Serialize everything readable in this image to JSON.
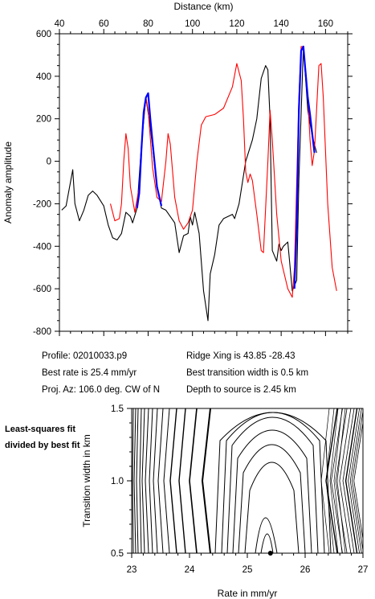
{
  "info": {
    "profile": "Profile: 02010033.p9",
    "best_rate": "Best rate is 25.4 mm/yr",
    "proj_az": "Proj. Az: 106.0 deg. CW of N",
    "ridge_xing": "Ridge Xing is 43.85 -28.43",
    "best_width": "Best transition width is 0.5 km",
    "depth": "Depth to source is   2.45 km"
  },
  "note": "Least-squares fit divided by best fit",
  "chart_data": [
    {
      "type": "line",
      "xlabel": "Distance (km)",
      "ylabel": "Anomaly amplitude",
      "xlim": [
        40,
        170
      ],
      "ylim": [
        -800,
        600
      ],
      "xticks": [
        40,
        60,
        80,
        100,
        120,
        140,
        160
      ],
      "yticks": [
        600,
        400,
        200,
        0,
        -200,
        -400,
        -600,
        -800
      ],
      "series": [
        {
          "color": "#000000",
          "points": [
            [
              41,
              -230
            ],
            [
              43,
              -210
            ],
            [
              46,
              -40
            ],
            [
              47,
              -200
            ],
            [
              49,
              -280
            ],
            [
              51,
              -230
            ],
            [
              53,
              -160
            ],
            [
              55,
              -140
            ],
            [
              57,
              -160
            ],
            [
              60,
              -210
            ],
            [
              62,
              -300
            ],
            [
              64,
              -360
            ],
            [
              66,
              -370
            ],
            [
              68,
              -340
            ],
            [
              70,
              -240
            ],
            [
              72,
              -260
            ],
            [
              73,
              -290
            ],
            [
              75,
              -220
            ],
            [
              77,
              80
            ],
            [
              79,
              300
            ],
            [
              81,
              160
            ],
            [
              84,
              -120
            ],
            [
              86,
              -220
            ],
            [
              88,
              -230
            ],
            [
              90,
              -260
            ],
            [
              92,
              -290
            ],
            [
              94,
              -430
            ],
            [
              96,
              -350
            ],
            [
              98,
              -340
            ],
            [
              99,
              -260
            ],
            [
              100,
              -300
            ],
            [
              101,
              -240
            ],
            [
              103,
              -340
            ],
            [
              105,
              -610
            ],
            [
              107,
              -750
            ],
            [
              108,
              -530
            ],
            [
              110,
              -440
            ],
            [
              112,
              -300
            ],
            [
              114,
              -270
            ],
            [
              116,
              -260
            ],
            [
              118,
              -250
            ],
            [
              119,
              -270
            ],
            [
              121,
              -200
            ],
            [
              124,
              0
            ],
            [
              127,
              100
            ],
            [
              129,
              200
            ],
            [
              131,
              390
            ],
            [
              133,
              450
            ],
            [
              134,
              430
            ],
            [
              135,
              200
            ],
            [
              136,
              -420
            ],
            [
              138,
              -470
            ],
            [
              139,
              -390
            ],
            [
              140,
              -420
            ],
            [
              141,
              -400
            ],
            [
              143,
              -380
            ],
            [
              145,
              -610
            ],
            [
              147,
              -560
            ],
            [
              148,
              -90
            ],
            [
              150,
              540
            ],
            [
              152,
              240
            ],
            [
              154,
              120
            ],
            [
              156,
              40
            ]
          ]
        },
        {
          "color": "#ff0000",
          "points": [
            [
              63,
              -200
            ],
            [
              65,
              -280
            ],
            [
              67,
              -270
            ],
            [
              68,
              -200
            ],
            [
              69,
              0
            ],
            [
              70,
              130
            ],
            [
              71,
              60
            ],
            [
              72,
              -120
            ],
            [
              74,
              -240
            ],
            [
              76,
              -120
            ],
            [
              78,
              200
            ],
            [
              79,
              300
            ],
            [
              80,
              240
            ],
            [
              82,
              -30
            ],
            [
              84,
              -170
            ],
            [
              86,
              -190
            ],
            [
              88,
              0
            ],
            [
              89,
              130
            ],
            [
              90,
              80
            ],
            [
              92,
              -170
            ],
            [
              94,
              -280
            ],
            [
              96,
              -320
            ],
            [
              98,
              -290
            ],
            [
              100,
              -230
            ],
            [
              102,
              0
            ],
            [
              104,
              170
            ],
            [
              106,
              210
            ],
            [
              110,
              220
            ],
            [
              114,
              250
            ],
            [
              118,
              350
            ],
            [
              120,
              460
            ],
            [
              122,
              380
            ],
            [
              123,
              200
            ],
            [
              124,
              -50
            ],
            [
              125,
              -100
            ],
            [
              126,
              -60
            ],
            [
              127,
              -90
            ],
            [
              129,
              -250
            ],
            [
              131,
              -420
            ],
            [
              132,
              -430
            ],
            [
              134,
              0
            ],
            [
              135,
              240
            ],
            [
              136,
              100
            ],
            [
              138,
              -250
            ],
            [
              140,
              -470
            ],
            [
              143,
              -600
            ],
            [
              145,
              -640
            ],
            [
              146,
              -500
            ],
            [
              147,
              -100
            ],
            [
              148,
              300
            ],
            [
              149,
              540
            ],
            [
              150,
              540
            ],
            [
              152,
              300
            ],
            [
              153,
              100
            ],
            [
              154,
              -20
            ],
            [
              155,
              50
            ],
            [
              157,
              450
            ],
            [
              158,
              460
            ],
            [
              159,
              300
            ],
            [
              161,
              -200
            ],
            [
              163,
              -500
            ],
            [
              165,
              -610
            ]
          ]
        },
        {
          "color": "#0000ff",
          "points": [
            [
              75,
              -220
            ],
            [
              76,
              -150
            ],
            [
              77,
              60
            ],
            [
              78,
              230
            ],
            [
              79,
              300
            ],
            [
              80,
              320
            ],
            [
              81,
              200
            ],
            [
              82,
              90
            ],
            [
              84,
              -120
            ],
            [
              86,
              -210
            ]
          ]
        },
        {
          "color": "#0000ff",
          "points": [
            [
              146,
              -600
            ],
            [
              147,
              -300
            ],
            [
              148,
              240
            ],
            [
              149,
              520
            ],
            [
              150,
              540
            ],
            [
              151,
              420
            ],
            [
              152,
              300
            ],
            [
              153,
              220
            ],
            [
              154,
              130
            ],
            [
              155,
              40
            ]
          ]
        }
      ]
    },
    {
      "type": "contour",
      "xlabel": "Rate in mm/yr",
      "ylabel": "Transition width in km",
      "xlim": [
        23,
        27
      ],
      "ylim": [
        0.5,
        1.5
      ],
      "xticks": [
        23,
        24,
        25,
        26,
        27
      ],
      "yticks": [
        0.5,
        1.0,
        1.5
      ],
      "best_fit": [
        25.4,
        0.5
      ]
    }
  ]
}
